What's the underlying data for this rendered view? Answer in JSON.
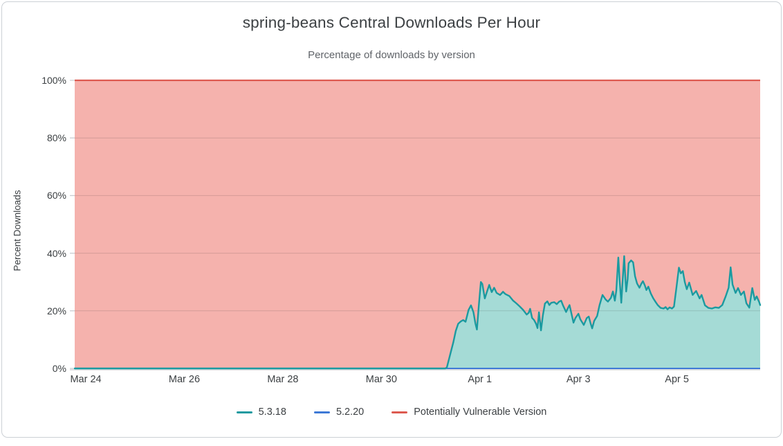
{
  "chart_data": {
    "type": "area",
    "title": "spring-beans Central Downloads Per Hour",
    "subtitle": "Percentage of downloads by version",
    "ylabel": "Percent Downloads",
    "ylim": [
      0,
      100
    ],
    "grid": "horizontal",
    "legend_position": "bottom",
    "x_domain_days": [
      -0.225,
      13.69
    ],
    "x_epoch": "days since Mar 24",
    "y_ticks": [
      {
        "value": 0,
        "label": "0%"
      },
      {
        "value": 20,
        "label": "20%"
      },
      {
        "value": 40,
        "label": "40%"
      },
      {
        "value": 60,
        "label": "60%"
      },
      {
        "value": 80,
        "label": "80%"
      },
      {
        "value": 100,
        "label": "100%"
      }
    ],
    "x_ticks": [
      {
        "day": 0,
        "label": "Mar 24"
      },
      {
        "day": 2,
        "label": "Mar 26"
      },
      {
        "day": 4,
        "label": "Mar 28"
      },
      {
        "day": 6,
        "label": "Mar 30"
      },
      {
        "day": 8,
        "label": "Apr 1"
      },
      {
        "day": 10,
        "label": "Apr 3"
      },
      {
        "day": 12,
        "label": "Apr 5"
      }
    ],
    "colors": {
      "grid": "rgba(32,33,36,0.15)",
      "axis_line": "#c9cdd1",
      "card_border": "#ccd0d5",
      "title_text": "#3c4043",
      "subtitle_text": "#5f6368",
      "tick_text": "#3c4043"
    },
    "series": [
      {
        "name": "5.3.18",
        "color": "#1b9aa0",
        "fill_color": "#a5dbd6",
        "points": [
          [
            -0.225,
            0
          ],
          [
            1,
            0
          ],
          [
            2,
            0
          ],
          [
            3,
            0
          ],
          [
            4,
            0
          ],
          [
            5,
            0
          ],
          [
            6,
            0
          ],
          [
            6.5,
            0
          ],
          [
            7.0,
            0
          ],
          [
            7.2,
            0
          ],
          [
            7.3,
            0
          ],
          [
            7.33,
            0.4
          ],
          [
            7.4,
            5
          ],
          [
            7.46,
            9
          ],
          [
            7.51,
            13
          ],
          [
            7.56,
            15.5
          ],
          [
            7.61,
            16.3
          ],
          [
            7.66,
            16.8
          ],
          [
            7.71,
            16.2
          ],
          [
            7.77,
            20.3
          ],
          [
            7.82,
            21.9
          ],
          [
            7.87,
            19.5
          ],
          [
            7.91,
            15.5
          ],
          [
            7.94,
            13.5
          ],
          [
            7.98,
            22
          ],
          [
            8.02,
            30
          ],
          [
            8.05,
            29.3
          ],
          [
            8.1,
            24.3
          ],
          [
            8.15,
            27
          ],
          [
            8.19,
            29
          ],
          [
            8.24,
            26.5
          ],
          [
            8.29,
            28
          ],
          [
            8.34,
            26.2
          ],
          [
            8.41,
            25.5
          ],
          [
            8.47,
            26.6
          ],
          [
            8.52,
            25.8
          ],
          [
            8.6,
            25.1
          ],
          [
            8.67,
            23.6
          ],
          [
            8.74,
            22.6
          ],
          [
            8.81,
            21.5
          ],
          [
            8.88,
            20.3
          ],
          [
            8.95,
            18.7
          ],
          [
            8.99,
            19.3
          ],
          [
            9.02,
            20.7
          ],
          [
            9.06,
            17.5
          ],
          [
            9.1,
            16.8
          ],
          [
            9.14,
            15.5
          ],
          [
            9.17,
            14
          ],
          [
            9.2,
            19.5
          ],
          [
            9.24,
            13.2
          ],
          [
            9.28,
            18.5
          ],
          [
            9.32,
            22.5
          ],
          [
            9.37,
            23.3
          ],
          [
            9.41,
            22
          ],
          [
            9.45,
            22.8
          ],
          [
            9.51,
            23
          ],
          [
            9.56,
            22.3
          ],
          [
            9.61,
            23.2
          ],
          [
            9.65,
            23.5
          ],
          [
            9.69,
            21.8
          ],
          [
            9.75,
            19.6
          ],
          [
            9.79,
            21
          ],
          [
            9.82,
            22
          ],
          [
            9.86,
            19
          ],
          [
            9.9,
            15.9
          ],
          [
            9.94,
            17.5
          ],
          [
            10.0,
            19
          ],
          [
            10.04,
            17
          ],
          [
            10.11,
            15.1
          ],
          [
            10.17,
            17.5
          ],
          [
            10.21,
            18
          ],
          [
            10.25,
            15.5
          ],
          [
            10.28,
            13.9
          ],
          [
            10.32,
            16.5
          ],
          [
            10.38,
            18.2
          ],
          [
            10.43,
            22
          ],
          [
            10.49,
            25.5
          ],
          [
            10.55,
            24
          ],
          [
            10.6,
            23.2
          ],
          [
            10.66,
            24.5
          ],
          [
            10.7,
            26.7
          ],
          [
            10.74,
            23.5
          ],
          [
            10.77,
            27
          ],
          [
            10.81,
            38.5
          ],
          [
            10.84,
            30
          ],
          [
            10.87,
            22.8
          ],
          [
            10.9,
            31
          ],
          [
            10.93,
            39
          ],
          [
            10.95,
            32
          ],
          [
            10.97,
            26.7
          ],
          [
            11.0,
            31
          ],
          [
            11.02,
            36.5
          ],
          [
            11.07,
            37.5
          ],
          [
            11.11,
            36.8
          ],
          [
            11.15,
            32
          ],
          [
            11.19,
            29.5
          ],
          [
            11.24,
            28
          ],
          [
            11.28,
            29.5
          ],
          [
            11.31,
            30.3
          ],
          [
            11.35,
            28.8
          ],
          [
            11.38,
            27.2
          ],
          [
            11.42,
            28.4
          ],
          [
            11.47,
            26
          ],
          [
            11.52,
            24.3
          ],
          [
            11.57,
            23
          ],
          [
            11.61,
            22
          ],
          [
            11.67,
            21
          ],
          [
            11.73,
            20.8
          ],
          [
            11.77,
            21.3
          ],
          [
            11.81,
            20.5
          ],
          [
            11.85,
            21.2
          ],
          [
            11.9,
            20.8
          ],
          [
            11.94,
            21.5
          ],
          [
            11.99,
            28
          ],
          [
            12.04,
            35
          ],
          [
            12.08,
            33
          ],
          [
            12.12,
            33.8
          ],
          [
            12.16,
            30
          ],
          [
            12.2,
            27.5
          ],
          [
            12.25,
            29.8
          ],
          [
            12.32,
            25.5
          ],
          [
            12.39,
            26.9
          ],
          [
            12.46,
            24.3
          ],
          [
            12.5,
            25.5
          ],
          [
            12.57,
            21.9
          ],
          [
            12.64,
            21
          ],
          [
            12.71,
            20.8
          ],
          [
            12.78,
            21.2
          ],
          [
            12.85,
            21
          ],
          [
            12.92,
            22
          ],
          [
            12.99,
            25
          ],
          [
            13.05,
            28
          ],
          [
            13.09,
            35.1
          ],
          [
            13.13,
            29.1
          ],
          [
            13.19,
            26.2
          ],
          [
            13.24,
            27.9
          ],
          [
            13.3,
            25.5
          ],
          [
            13.36,
            26.7
          ],
          [
            13.41,
            22.6
          ],
          [
            13.47,
            21.1
          ],
          [
            13.53,
            27.9
          ],
          [
            13.58,
            23.8
          ],
          [
            13.62,
            25
          ],
          [
            13.67,
            23
          ],
          [
            13.69,
            22
          ]
        ]
      },
      {
        "name": "5.2.20",
        "color": "#3e79d6",
        "constant_pct": 0
      },
      {
        "name": "Potentially Vulnerable Version",
        "color": "#dd5a50",
        "fill_color": "#f5b2ad",
        "constant_pct": 100,
        "fill_mode": "background"
      }
    ]
  }
}
